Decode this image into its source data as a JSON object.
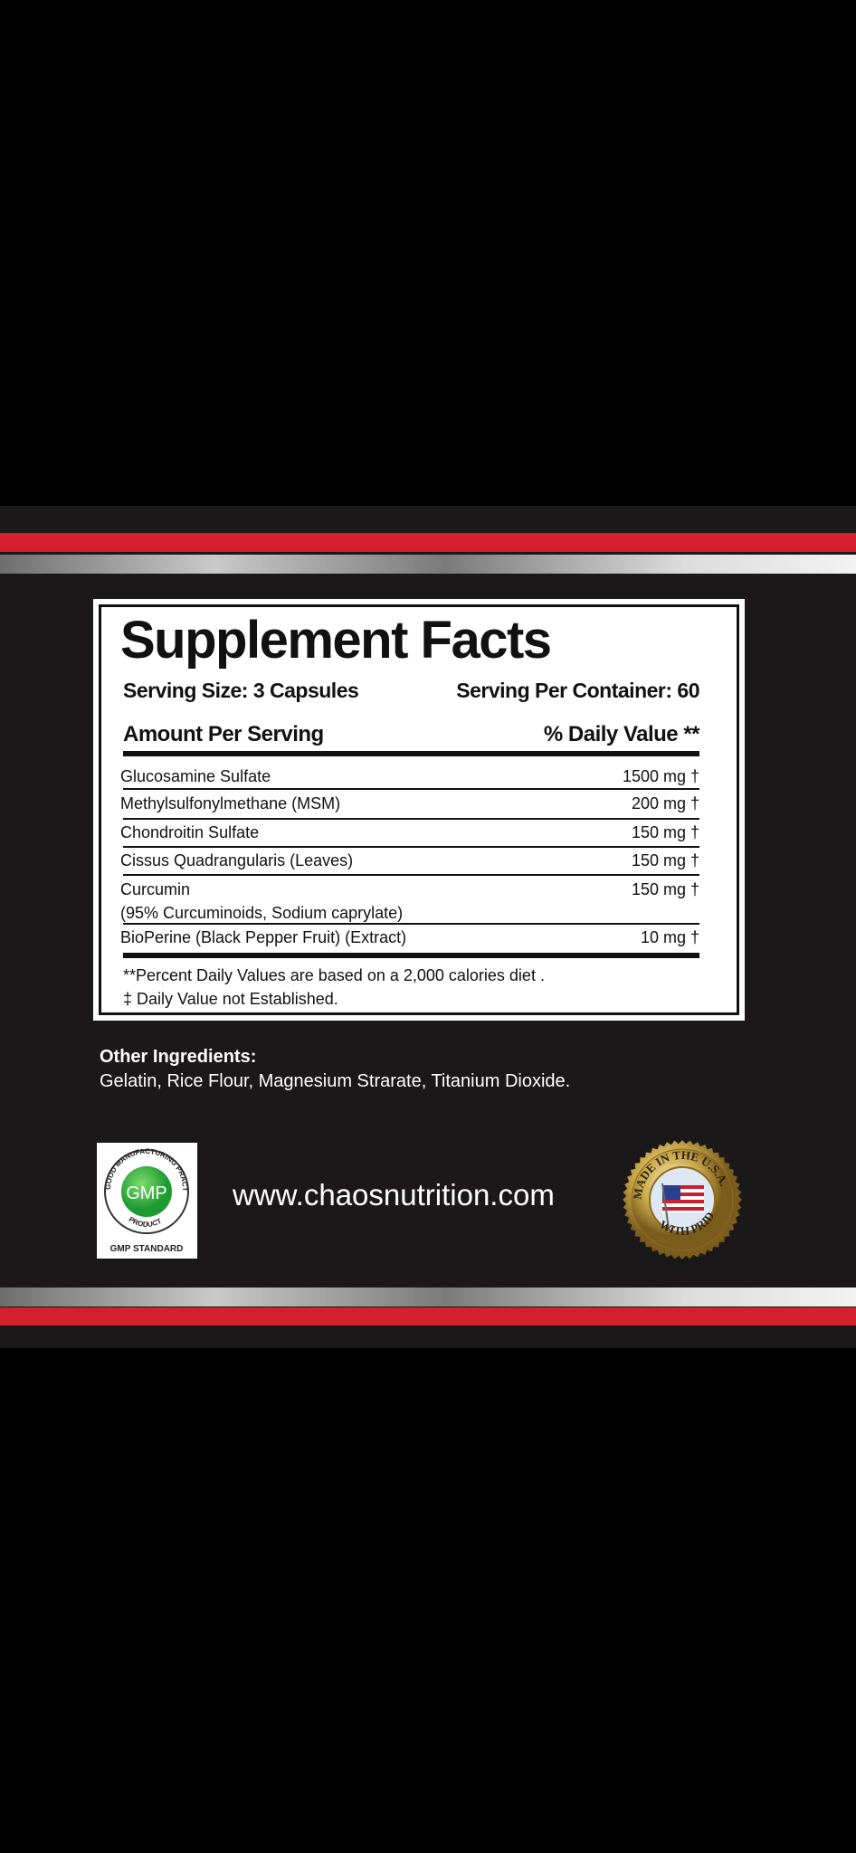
{
  "facts": {
    "title": "Supplement Facts",
    "serving_size": "Serving Size: 3 Capsules",
    "servings_per_container": "Serving Per Container: 60",
    "amount_header": "Amount Per Serving",
    "dv_header": "% Daily Value **",
    "rows": [
      {
        "name": "Glucosamine Sulfate",
        "value": "1500 mg †"
      },
      {
        "name": "Methylsulfonylmethane (MSM)",
        "value": "200 mg †"
      },
      {
        "name": "Chondroitin Sulfate",
        "value": "150 mg †"
      },
      {
        "name": "Cissus Quadrangularis (Leaves)",
        "value": "150 mg †"
      },
      {
        "name": "Curcumin",
        "sub": "(95% Curcuminoids, Sodium caprylate)",
        "value": "150 mg †"
      },
      {
        "name": "BioPerine (Black Pepper Fruit) (Extract)",
        "value": "10 mg †"
      }
    ],
    "footnote1": "**Percent Daily Values are based on a 2,000 calories diet .",
    "footnote2": "‡ Daily Value not Established."
  },
  "other_ingredients": {
    "heading": "Other Ingredients:",
    "text": "Gelatin, Rice Flour, Magnesium Strarate, Titanium Dioxide."
  },
  "website": "www.chaosnutrition.com",
  "gmp_badge": {
    "ring_text": "GOOD MANUFACTURING PRACTICE",
    "center": "GMP",
    "bottom_ring": "PRODUCT",
    "caption": "GMP STANDARD"
  },
  "usa_seal": {
    "top": "MADE IN THE U.S.A.",
    "bottom": "WITH PRIDE",
    "icon": "american-flag-icon"
  },
  "colors": {
    "red_stripe": "#d4202a",
    "background": "#1a1818",
    "gmp_green": "#2faa3a",
    "seal_gold": "#c9a84a"
  }
}
